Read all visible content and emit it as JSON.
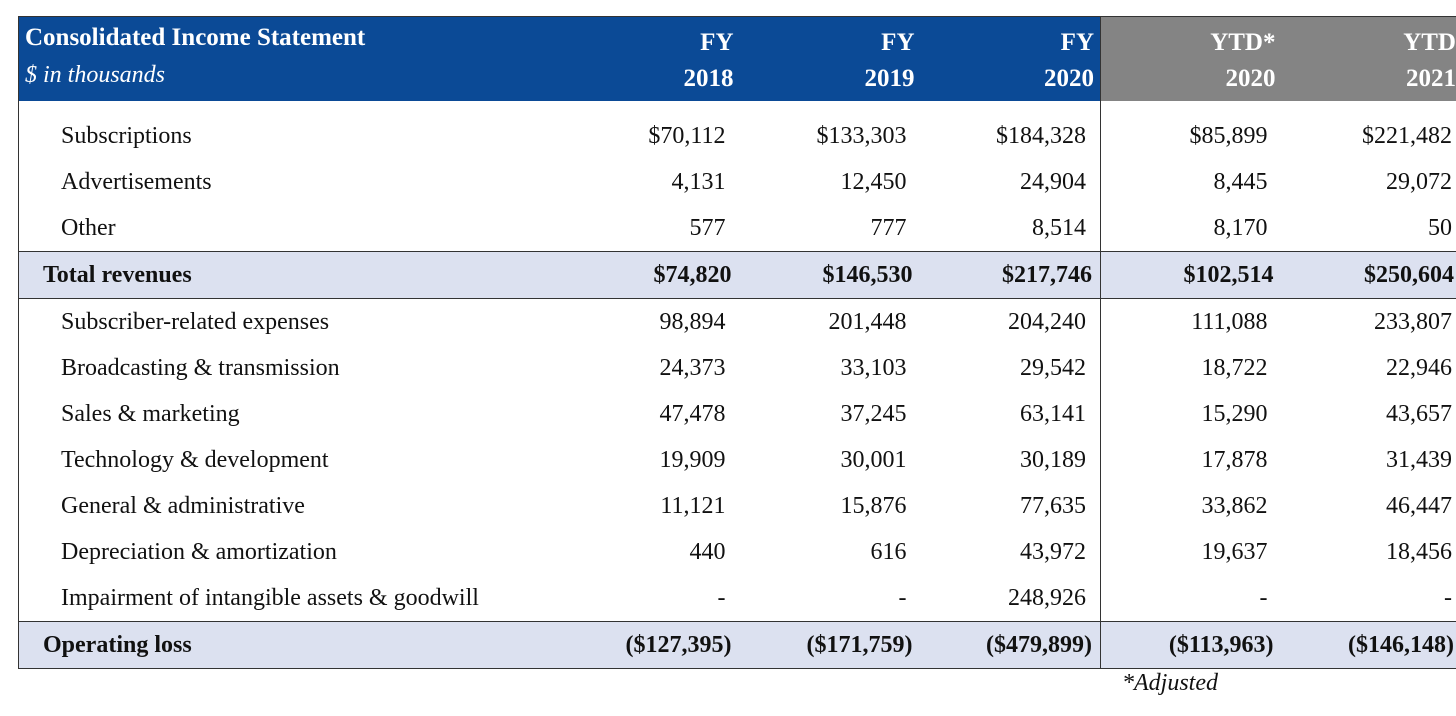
{
  "header": {
    "title": "Consolidated Income Statement",
    "subtitle": "$ in thousands",
    "columns": [
      {
        "top": "FY",
        "bottom": "2018"
      },
      {
        "top": "FY",
        "bottom": "2019"
      },
      {
        "top": "FY",
        "bottom": "2020"
      },
      {
        "top": "YTD*",
        "bottom": "2020"
      },
      {
        "top": "YTD",
        "bottom": "2021"
      }
    ],
    "colors": {
      "blue": "#0b4a96",
      "gray": "#848484",
      "total_band": "#dce1f0"
    }
  },
  "rows": [
    {
      "label": "Subscriptions",
      "values": [
        "$70,112",
        "$133,303",
        "$184,328",
        "$85,899",
        "$221,482"
      ]
    },
    {
      "label": "Advertisements",
      "values": [
        "4,131",
        "12,450",
        "24,904",
        "8,445",
        "29,072"
      ]
    },
    {
      "label": "Other",
      "values": [
        "577",
        "777",
        "8,514",
        "8,170",
        "50"
      ]
    },
    {
      "label": "Total revenues",
      "values": [
        "$74,820",
        "$146,530",
        "$217,746",
        "$102,514",
        "$250,604"
      ]
    },
    {
      "label": "Subscriber-related expenses",
      "values": [
        "98,894",
        "201,448",
        "204,240",
        "111,088",
        "233,807"
      ]
    },
    {
      "label": "Broadcasting & transmission",
      "values": [
        "24,373",
        "33,103",
        "29,542",
        "18,722",
        "22,946"
      ]
    },
    {
      "label": "Sales & marketing",
      "values": [
        "47,478",
        "37,245",
        "63,141",
        "15,290",
        "43,657"
      ]
    },
    {
      "label": "Technology & development",
      "values": [
        "19,909",
        "30,001",
        "30,189",
        "17,878",
        "31,439"
      ]
    },
    {
      "label": "General & administrative",
      "values": [
        "11,121",
        "15,876",
        "77,635",
        "33,862",
        "46,447"
      ]
    },
    {
      "label": "Depreciation & amortization",
      "values": [
        "440",
        "616",
        "43,972",
        "19,637",
        "18,456"
      ]
    },
    {
      "label": "Impairment of intangible assets & goodwill",
      "values": [
        "-",
        "-",
        "248,926",
        "-",
        "-"
      ]
    },
    {
      "label": "Operating loss",
      "values": [
        "($127,395)",
        "($171,759)",
        "($479,899)",
        "($113,963)",
        "($146,148)"
      ]
    }
  ],
  "footnote": "*Adjusted"
}
